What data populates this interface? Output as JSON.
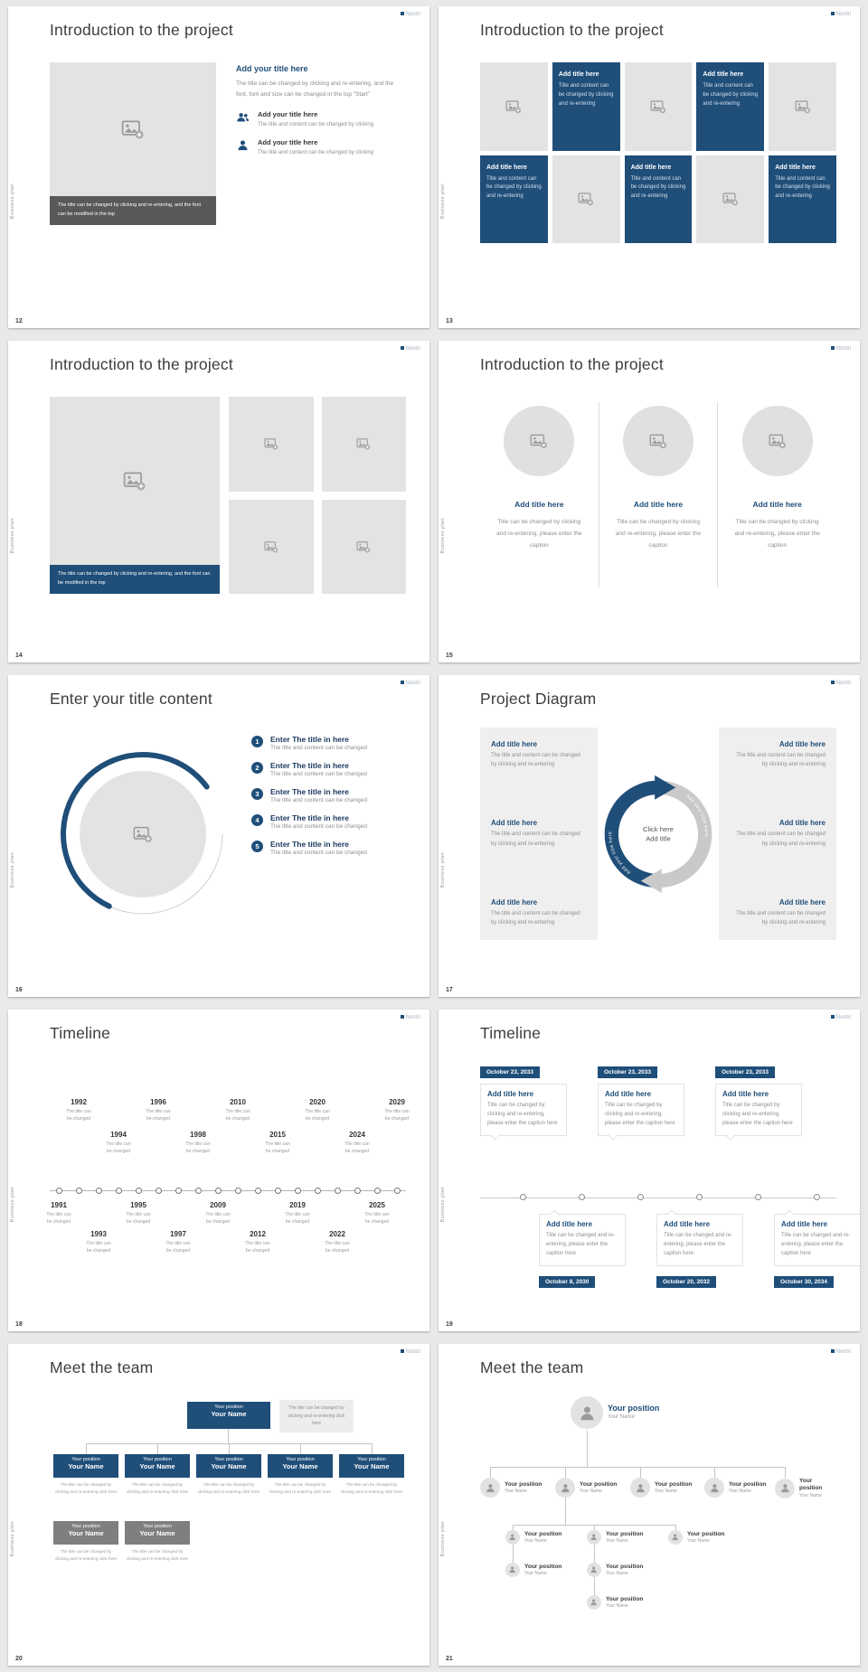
{
  "board": {
    "background": "#e9e9e9",
    "accent": "#1f4e79"
  },
  "brand": {
    "logo": "Nordri",
    "side_label": "Business plan"
  },
  "slides": {
    "s12": {
      "page": "12",
      "title": "Introduction to the project",
      "image_caption": "The title can be changed by clicking and re-entering, and the font can be modified in the top",
      "heading": "Add your title here",
      "body": "The title can be changed by clicking and re-entering, and the font, font and size can be changed in the top \"Start\"",
      "items": [
        {
          "title": "Add your title here",
          "text": "The title and content can be changed by clicking"
        },
        {
          "title": "Add your title here",
          "text": "The title and content can be changed by clicking"
        }
      ]
    },
    "s13": {
      "page": "13",
      "title": "Introduction to the project",
      "tiles": [
        {
          "title": "Add title here",
          "text": "Title and content can be changed by clicking and re-entering"
        },
        {
          "title": "Add title here",
          "text": "Title and content can be changed by clicking and re-entering"
        },
        {
          "title": "Add title here",
          "text": "Title and content can be changed by clicking and re-entering"
        },
        {
          "title": "Add title here",
          "text": "Title and content can be changed by clicking and re-entering"
        },
        {
          "title": "Add title here",
          "text": "Title and content can be changed by clicking and re-entering"
        }
      ]
    },
    "s14": {
      "page": "14",
      "title": "Introduction to the project",
      "image_caption": "The title can be changed by clicking and re-entering, and the font can be modified in the top"
    },
    "s15": {
      "page": "15",
      "title": "Introduction to the project",
      "columns": [
        {
          "title": "Add title here",
          "text": "Title can be changed by clicking and re-entering, please enter the caption"
        },
        {
          "title": "Add title here",
          "text": "Title can be changed by clicking and re-entering, please enter the caption"
        },
        {
          "title": "Add title here",
          "text": "Title can be changed by clicking and re-entering, please enter the caption"
        }
      ]
    },
    "s16": {
      "page": "16",
      "title": "Enter your title content",
      "items": [
        {
          "num": "1",
          "title": "Enter The title in here",
          "text": "The title and content can be changed"
        },
        {
          "num": "2",
          "title": "Enter The title in here",
          "text": "The title and content can be changed"
        },
        {
          "num": "3",
          "title": "Enter The title in here",
          "text": "The title and content can be changed"
        },
        {
          "num": "4",
          "title": "Enter The title in here",
          "text": "The title and content can be changed"
        },
        {
          "num": "5",
          "title": "Enter The title in here",
          "text": "The title and content can be changed"
        }
      ]
    },
    "s17": {
      "page": "17",
      "title": "Project Diagram",
      "left_items": [
        {
          "title": "Add title here",
          "text": "The title and content can be changed by clicking and re-entering"
        },
        {
          "title": "Add title here",
          "text": "The title and content can be changed by clicking and re-entering"
        },
        {
          "title": "Add title here",
          "text": "The title and content can be changed by clicking and re-entering"
        }
      ],
      "right_items": [
        {
          "title": "Add title here",
          "text": "The title and content can be changed by clicking and re-entering"
        },
        {
          "title": "Add title here",
          "text": "The title and content can be changed by clicking and re-entering"
        },
        {
          "title": "Add title here",
          "text": "The title and content can be changed by clicking and re-entering"
        }
      ],
      "center": {
        "line1": "Click here",
        "line2": "Add title",
        "arc_left": "Add your title here",
        "arc_right": "Add your title here"
      }
    },
    "s18": {
      "page": "18",
      "title": "Timeline",
      "entry_caption": "The title can be changed",
      "top_years": [
        "1992",
        "1994",
        "1996",
        "1998",
        "2010",
        "2015",
        "2020",
        "2024",
        "2029"
      ],
      "bottom_years": [
        "1991",
        "1993",
        "1995",
        "1997",
        "2009",
        "2012",
        "2019",
        "2022",
        "2025"
      ]
    },
    "s19": {
      "page": "19",
      "title": "Timeline",
      "top": [
        {
          "date": "October 23, 2033",
          "title": "Add title here",
          "text": "Title can be changed by clicking and re-entering, please enter the caption here"
        },
        {
          "date": "October 23, 2033",
          "title": "Add title here",
          "text": "Title can be changed by clicking and re-entering, please enter the caption here"
        },
        {
          "date": "October 23, 2033",
          "title": "Add title here",
          "text": "Title can be changed by clicking and re-entering, please enter the caption here"
        }
      ],
      "bottom": [
        {
          "date": "October 8, 2030",
          "title": "Add title here",
          "text": "Title can be changed and re-entering, please enter the caption here"
        },
        {
          "date": "October 20, 2032",
          "title": "Add title here",
          "text": "Title can be changed and re-entering, please enter the caption here"
        },
        {
          "date": "October 30, 2034",
          "title": "Add title here",
          "text": "Title can be changed and re-entering, please enter the caption here"
        }
      ]
    },
    "s20": {
      "page": "20",
      "title": "Meet the team",
      "root": {
        "position": "Your position",
        "name": "Your Name"
      },
      "note": "The title can be changed by clicking and re-entering click here",
      "member_caption": "The title can be changed by clicking and re-entering click here",
      "row1": [
        {
          "position": "Your position",
          "name": "Your Name"
        },
        {
          "position": "Your position",
          "name": "Your Name"
        },
        {
          "position": "Your position",
          "name": "Your Name"
        },
        {
          "position": "Your position",
          "name": "Your Name"
        },
        {
          "position": "Your position",
          "name": "Your Name"
        }
      ],
      "row2": [
        {
          "position": "Your position",
          "name": "Your Name"
        },
        {
          "position": "Your position",
          "name": "Your Name"
        }
      ]
    },
    "s21": {
      "page": "21",
      "title": "Meet the team",
      "root": {
        "position": "Your position",
        "name": "Your Name"
      },
      "level2": [
        {
          "position": "Your position",
          "name": "Your Name"
        },
        {
          "position": "Your position",
          "name": "Your Name"
        },
        {
          "position": "Your position",
          "name": "Your Name"
        },
        {
          "position": "Your position",
          "name": "Your Name"
        },
        {
          "position": "Your position",
          "name": "Your Name"
        }
      ],
      "level3": [
        {
          "position": "Your position",
          "name": "Your Name"
        },
        {
          "position": "Your position",
          "name": "Your Name"
        },
        {
          "position": "Your position",
          "name": "Your Name"
        }
      ],
      "level4": [
        {
          "position": "Your position",
          "name": "Your Name"
        },
        {
          "position": "Your position",
          "name": "Your Name"
        }
      ],
      "level5": [
        {
          "position": "Your position",
          "name": "Your Name"
        }
      ]
    }
  }
}
